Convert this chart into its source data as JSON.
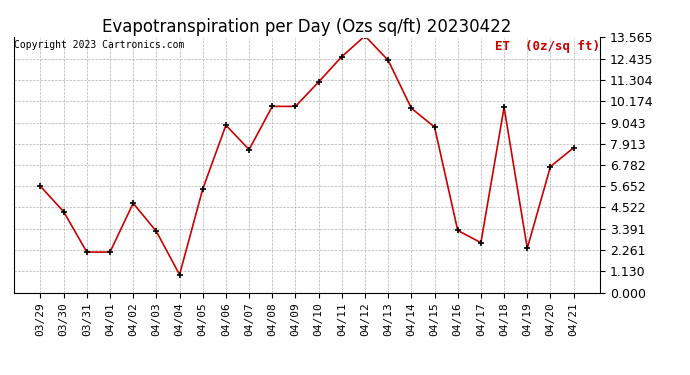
{
  "title": "Evapotranspiration per Day (Ozs sq/ft) 20230422",
  "copyright": "Copyright 2023 Cartronics.com",
  "legend_label": "ET  (0z/sq ft)",
  "x_labels": [
    "03/29",
    "03/30",
    "03/31",
    "04/01",
    "04/02",
    "04/03",
    "04/04",
    "04/05",
    "04/06",
    "04/07",
    "04/08",
    "04/09",
    "04/10",
    "04/11",
    "04/12",
    "04/13",
    "04/14",
    "04/15",
    "04/16",
    "04/17",
    "04/18",
    "04/19",
    "04/20",
    "04/21"
  ],
  "y_values": [
    5.65,
    4.3,
    2.15,
    2.15,
    4.75,
    3.25,
    0.95,
    5.5,
    8.9,
    7.6,
    9.9,
    9.9,
    11.2,
    12.55,
    13.65,
    12.35,
    9.8,
    8.8,
    3.3,
    2.65,
    9.85,
    2.35,
    6.7,
    7.7
  ],
  "ylim": [
    0.0,
    13.565
  ],
  "yticks": [
    0.0,
    1.13,
    2.261,
    3.391,
    4.522,
    5.652,
    6.782,
    7.913,
    9.043,
    10.174,
    11.304,
    12.435,
    13.565
  ],
  "line_color": "#cc0000",
  "marker_color": "#000000",
  "background_color": "#ffffff",
  "grid_color": "#aaaaaa",
  "title_fontsize": 12,
  "copyright_fontsize": 7,
  "legend_fontsize": 9,
  "tick_fontsize": 8,
  "ytick_fontsize": 9
}
